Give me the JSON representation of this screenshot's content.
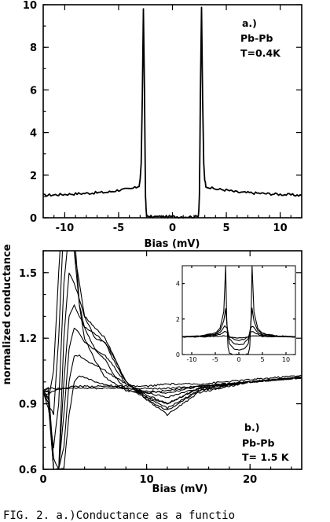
{
  "figure": {
    "shared_ylabel": "normalized conductance",
    "caption": "FIG. 2.  a.)Conductance as a functio"
  },
  "chart_data": [
    {
      "id": "panel-a",
      "type": "line",
      "xlabel": "Bias (mV)",
      "ylabel": "normalized conductance",
      "xlim": [
        -12,
        12
      ],
      "ylim": [
        0,
        10
      ],
      "xticks": [
        -10,
        -5,
        0,
        5,
        10
      ],
      "xtick_labels": [
        "-10",
        "-5",
        "0",
        "5",
        "10"
      ],
      "yticks": [
        0,
        2,
        4,
        6,
        8,
        10
      ],
      "ytick_labels": [
        "0",
        "2",
        "4",
        "6",
        "8",
        "10"
      ],
      "annotations": [
        "a.)",
        "Pb-Pb",
        "T=0.4K"
      ],
      "series": [
        {
          "x": [
            -12,
            -10,
            -8,
            -6,
            -5,
            -4,
            -3.5,
            -3.1,
            -3.0,
            -2.9,
            -2.8,
            -2.7,
            -2.6,
            -2.5,
            -2.45,
            -2.4,
            -2.3,
            -2.0,
            -1.5,
            -1,
            0,
            1,
            1.5,
            2.0,
            2.3,
            2.4,
            2.45,
            2.5,
            2.6,
            2.7,
            2.8,
            2.9,
            3.0,
            3.1,
            3.5,
            4,
            5,
            6,
            8,
            10,
            12
          ],
          "y": [
            1.05,
            1.1,
            1.15,
            1.2,
            1.3,
            1.35,
            1.4,
            1.5,
            1.8,
            2.6,
            5.5,
            9.8,
            6.0,
            1.0,
            0.4,
            0.1,
            0.05,
            0.05,
            0.05,
            0.05,
            0.05,
            0.05,
            0.05,
            0.05,
            0.05,
            0.1,
            0.4,
            1.0,
            6.0,
            9.9,
            5.5,
            2.6,
            1.8,
            1.5,
            1.4,
            1.35,
            1.3,
            1.2,
            1.15,
            1.1,
            1.05
          ]
        }
      ]
    },
    {
      "id": "panel-b",
      "type": "line",
      "xlabel": "Bias (mV)",
      "xlim": [
        0,
        25
      ],
      "ylim": [
        0.6,
        1.6
      ],
      "xticks": [
        0,
        10,
        20
      ],
      "xtick_labels": [
        "0",
        "10",
        "20"
      ],
      "yticks": [
        0.6,
        0.9,
        1.2,
        1.5
      ],
      "ytick_labels": [
        "0.6",
        "0.9",
        "1.2",
        "1.5"
      ],
      "annotations": [
        "b.)",
        "Pb-Pb",
        "T= 1.5 K"
      ],
      "series": [
        {
          "x": [
            0,
            0.5,
            1,
            1.5,
            2,
            2.5,
            3,
            3.5,
            4,
            5,
            6,
            7,
            8,
            10,
            12,
            15,
            20,
            25
          ],
          "y": [
            0.95,
            0.92,
            1.05,
            1.5,
            1.9,
            2.0,
            1.7,
            1.35,
            1.2,
            1.1,
            1.02,
            0.99,
            0.96,
            0.95,
            0.96,
            0.98,
            1.0,
            1.02
          ]
        },
        {
          "x": [
            0,
            0.5,
            1,
            1.5,
            2,
            2.5,
            3,
            3.5,
            4,
            5,
            6,
            7,
            8,
            10,
            12,
            15,
            20,
            25
          ],
          "y": [
            0.95,
            0.9,
            0.85,
            1.2,
            1.75,
            1.9,
            1.6,
            1.35,
            1.25,
            1.15,
            1.1,
            1.02,
            0.97,
            0.93,
            0.9,
            0.97,
            1.0,
            1.02
          ]
        },
        {
          "x": [
            0,
            0.5,
            1,
            1.5,
            2,
            2.5,
            3,
            3.5,
            4,
            5,
            6,
            7,
            8,
            10,
            12,
            15,
            20,
            25
          ],
          "y": [
            0.95,
            0.88,
            0.7,
            0.9,
            1.45,
            1.7,
            1.6,
            1.45,
            1.3,
            1.2,
            1.18,
            1.08,
            1.0,
            0.92,
            0.87,
            0.96,
            1.0,
            1.02
          ]
        },
        {
          "x": [
            0,
            0.5,
            1,
            1.5,
            2,
            2.5,
            3,
            3.5,
            4,
            5,
            6,
            7,
            8,
            10,
            12,
            15,
            20,
            25
          ],
          "y": [
            0.96,
            0.9,
            0.6,
            0.6,
            1.2,
            1.5,
            1.45,
            1.38,
            1.3,
            1.25,
            1.2,
            1.1,
            1.0,
            0.92,
            0.85,
            0.95,
            1.0,
            1.02
          ]
        },
        {
          "x": [
            0,
            0.5,
            1,
            1.5,
            2,
            2.5,
            3,
            3.5,
            4,
            5,
            6,
            7,
            8,
            10,
            12,
            15,
            20,
            25
          ],
          "y": [
            0.96,
            0.93,
            0.6,
            0.6,
            1.0,
            1.3,
            1.35,
            1.3,
            1.25,
            1.22,
            1.18,
            1.1,
            1.0,
            0.93,
            0.88,
            0.96,
            1.0,
            1.02
          ]
        },
        {
          "x": [
            0,
            0.5,
            1,
            1.5,
            2,
            2.5,
            3,
            3.5,
            4,
            5,
            6,
            7,
            8,
            10,
            12,
            15,
            20,
            25
          ],
          "y": [
            0.96,
            0.95,
            0.6,
            0.6,
            0.85,
            1.15,
            1.25,
            1.22,
            1.18,
            1.15,
            1.12,
            1.06,
            0.99,
            0.94,
            0.9,
            0.97,
            1.0,
            1.02
          ]
        },
        {
          "x": [
            0,
            0.5,
            1,
            1.5,
            2,
            2.5,
            3,
            3.5,
            4,
            5,
            6,
            7,
            8,
            10,
            12,
            15,
            20,
            25
          ],
          "y": [
            0.96,
            0.96,
            0.6,
            0.6,
            0.7,
            1.0,
            1.12,
            1.12,
            1.1,
            1.08,
            1.05,
            1.02,
            0.99,
            0.95,
            0.93,
            0.97,
            1.0,
            1.02
          ]
        },
        {
          "x": [
            0,
            0.5,
            1,
            1.5,
            2,
            2.5,
            3,
            3.5,
            4,
            5,
            6,
            7,
            8,
            10,
            12,
            15,
            20,
            25
          ],
          "y": [
            0.96,
            0.97,
            0.65,
            0.6,
            0.6,
            0.85,
            1.0,
            1.03,
            1.02,
            1.0,
            0.99,
            0.98,
            0.97,
            0.96,
            0.95,
            0.98,
            1.0,
            1.02
          ]
        },
        {
          "x": [
            0,
            0.5,
            1,
            2,
            3,
            4,
            5,
            6,
            8,
            10,
            12,
            15,
            20,
            25
          ],
          "y": [
            0.96,
            0.97,
            0.97,
            0.97,
            0.97,
            0.97,
            0.97,
            0.97,
            0.97,
            0.97,
            0.97,
            0.98,
            1.0,
            1.02
          ]
        },
        {
          "x": [
            0,
            0.5,
            1,
            2,
            3,
            4,
            5,
            6,
            8,
            10,
            12,
            15,
            20,
            25
          ],
          "y": [
            0.94,
            0.95,
            0.96,
            0.97,
            0.98,
            0.98,
            0.98,
            0.98,
            0.98,
            0.98,
            0.99,
            0.99,
            1.01,
            1.03
          ]
        }
      ],
      "inset": {
        "type": "line",
        "xlim": [
          -12,
          12
        ],
        "ylim": [
          0,
          5
        ],
        "xticks": [
          -10,
          -5,
          0,
          5,
          10
        ],
        "xtick_labels": [
          "-10",
          "-5",
          "0",
          "5",
          "10"
        ],
        "yticks": [
          0,
          2,
          4
        ],
        "ytick_labels": [
          "0",
          "2",
          "4"
        ],
        "series": [
          {
            "x": [
              -12,
              -8,
              -5,
              -4,
              -3.2,
              -2.8,
              -2.6,
              -2.3,
              -2,
              -1,
              0,
              1,
              2,
              2.3,
              2.6,
              2.8,
              3.2,
              4,
              5,
              8,
              12
            ],
            "y": [
              1.0,
              1.05,
              1.2,
              1.5,
              2.4,
              5.0,
              2.2,
              0.4,
              0.05,
              0.0,
              0.0,
              0.0,
              0.05,
              0.4,
              2.2,
              5.0,
              2.4,
              1.5,
              1.2,
              1.05,
              1.0
            ]
          },
          {
            "x": [
              -12,
              -8,
              -5,
              -4,
              -3.2,
              -2.8,
              -2.5,
              -2,
              -1,
              0,
              1,
              2,
              2.5,
              2.8,
              3.2,
              4,
              5,
              8,
              12
            ],
            "y": [
              1.0,
              1.05,
              1.15,
              1.35,
              1.9,
              2.6,
              1.6,
              0.6,
              0.3,
              0.25,
              0.3,
              0.6,
              1.6,
              2.6,
              1.9,
              1.35,
              1.15,
              1.05,
              1.0
            ]
          },
          {
            "x": [
              -12,
              -8,
              -5,
              -4,
              -3,
              -2.5,
              -2,
              -1,
              0,
              1,
              2,
              2.5,
              3,
              4,
              5,
              8,
              12
            ],
            "y": [
              1.0,
              1.03,
              1.1,
              1.25,
              1.6,
              1.5,
              0.9,
              0.6,
              0.55,
              0.6,
              0.9,
              1.5,
              1.6,
              1.25,
              1.1,
              1.03,
              1.0
            ]
          },
          {
            "x": [
              -12,
              -8,
              -5,
              -4,
              -3,
              -2.5,
              -2,
              -1,
              0,
              1,
              2,
              2.5,
              3,
              4,
              5,
              8,
              12
            ],
            "y": [
              1.0,
              1.02,
              1.06,
              1.15,
              1.3,
              1.25,
              1.0,
              0.85,
              0.8,
              0.85,
              1.0,
              1.25,
              1.3,
              1.15,
              1.06,
              1.02,
              1.0
            ]
          },
          {
            "x": [
              -12,
              -8,
              -5,
              -3,
              -2,
              -1,
              0,
              1,
              2,
              3,
              5,
              8,
              12
            ],
            "y": [
              1.0,
              1.0,
              1.02,
              1.05,
              1.0,
              0.95,
              0.93,
              0.95,
              1.0,
              1.05,
              1.02,
              1.0,
              1.0
            ]
          }
        ]
      }
    }
  ]
}
